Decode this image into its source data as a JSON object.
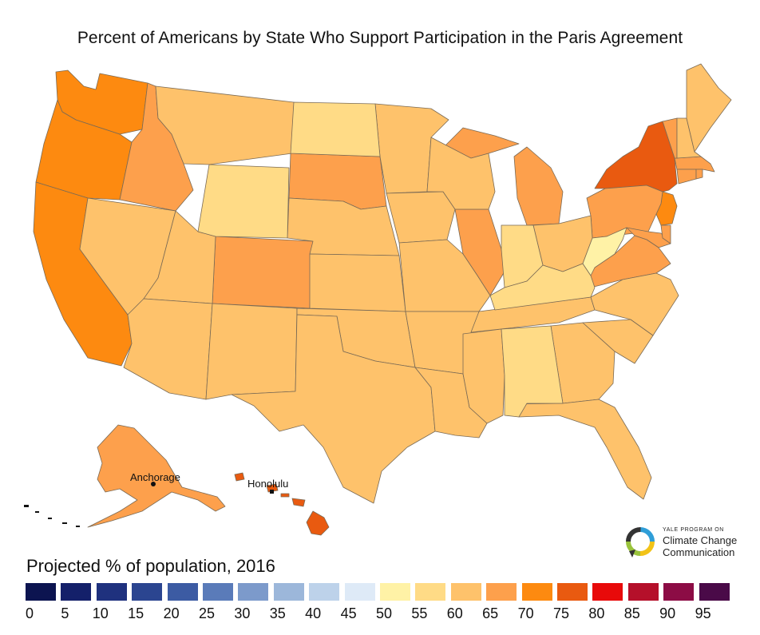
{
  "title": "Percent of Americans by State Who Support Participation in the Paris Agreement",
  "cities": {
    "anchorage": "Anchorage",
    "honolulu": "Honolulu"
  },
  "legend": {
    "title": "Projected % of population, 2016",
    "bins": [
      {
        "label": "0",
        "color": "#0c1450"
      },
      {
        "label": "5",
        "color": "#14206a"
      },
      {
        "label": "10",
        "color": "#1f317e"
      },
      {
        "label": "15",
        "color": "#2b4590"
      },
      {
        "label": "20",
        "color": "#3c5ba3"
      },
      {
        "label": "25",
        "color": "#5a7bb9"
      },
      {
        "label": "30",
        "color": "#7c9acb"
      },
      {
        "label": "35",
        "color": "#9cb7da"
      },
      {
        "label": "40",
        "color": "#bdd2ea"
      },
      {
        "label": "45",
        "color": "#deeaf7"
      },
      {
        "label": "50",
        "color": "#fff2a6"
      },
      {
        "label": "55",
        "color": "#ffdb86"
      },
      {
        "label": "60",
        "color": "#fec26b"
      },
      {
        "label": "65",
        "color": "#fda04c"
      },
      {
        "label": "70",
        "color": "#fd8a10"
      },
      {
        "label": "75",
        "color": "#e95a10"
      },
      {
        "label": "80",
        "color": "#e80a0a"
      },
      {
        "label": "85",
        "color": "#b5102a"
      },
      {
        "label": "90",
        "color": "#8c0c45"
      },
      {
        "label": "95",
        "color": "#4a0a48"
      }
    ]
  },
  "logo": {
    "line1": "YALE PROGRAM ON",
    "line2": "Climate Change",
    "line3": "Communication",
    "colors": [
      "#2f9ed8",
      "#f2c318",
      "#9ac33c",
      "#e5472a",
      "#8a4fb0"
    ]
  }
}
